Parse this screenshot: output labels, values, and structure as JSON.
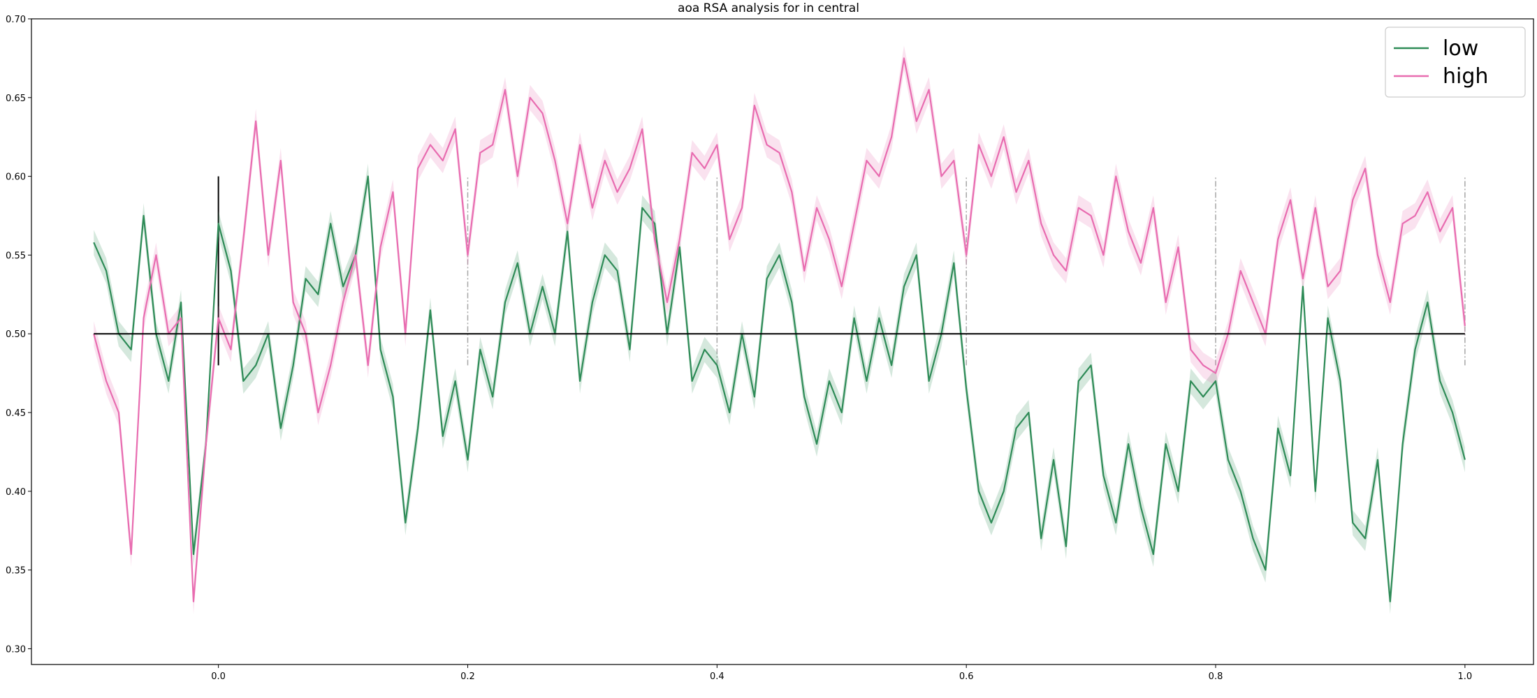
{
  "chart_data": {
    "type": "line",
    "title": "aoa RSA analysis for in central",
    "xlabel": "",
    "ylabel": "",
    "xlim": [
      -0.15,
      1.055
    ],
    "ylim": [
      0.29,
      0.7
    ],
    "x_ticks": [
      0.0,
      0.2,
      0.4,
      0.6,
      0.8,
      1.0
    ],
    "x_tick_labels": [
      "0.0",
      "0.2",
      "0.4",
      "0.6",
      "0.8",
      "1.0"
    ],
    "y_ticks": [
      0.3,
      0.35,
      0.4,
      0.45,
      0.5,
      0.55,
      0.6,
      0.65,
      0.7
    ],
    "y_tick_labels": [
      "0.30",
      "0.35",
      "0.40",
      "0.45",
      "0.50",
      "0.55",
      "0.60",
      "0.65",
      "0.70"
    ],
    "grid": false,
    "legend_position": "top-right",
    "chance_level": {
      "y": 0.5,
      "x_range": [
        -0.1,
        1.0
      ],
      "color": "#000000"
    },
    "onset_marker": {
      "x": 0.0,
      "y_range": [
        0.48,
        0.6
      ],
      "color": "#000000"
    },
    "dashed_markers": {
      "x": [
        0.2,
        0.4,
        0.6,
        0.8,
        1.0
      ],
      "y_range": [
        0.48,
        0.6
      ],
      "color": "#a6a6a6"
    },
    "series": [
      {
        "name": "low",
        "color": "#2e8b57",
        "band_halfwidth": 0.008,
        "x": [
          -0.1,
          -0.09,
          -0.08,
          -0.07,
          -0.06,
          -0.05,
          -0.04,
          -0.03,
          -0.02,
          -0.01,
          0.0,
          0.01,
          0.02,
          0.03,
          0.04,
          0.05,
          0.06,
          0.07,
          0.08,
          0.09,
          0.1,
          0.11,
          0.12,
          0.13,
          0.14,
          0.15,
          0.16,
          0.17,
          0.18,
          0.19,
          0.2,
          0.21,
          0.22,
          0.23,
          0.24,
          0.25,
          0.26,
          0.27,
          0.28,
          0.29,
          0.3,
          0.31,
          0.32,
          0.33,
          0.34,
          0.35,
          0.36,
          0.37,
          0.38,
          0.39,
          0.4,
          0.41,
          0.42,
          0.43,
          0.44,
          0.45,
          0.46,
          0.47,
          0.48,
          0.49,
          0.5,
          0.51,
          0.52,
          0.53,
          0.54,
          0.55,
          0.56,
          0.57,
          0.58,
          0.59,
          0.6,
          0.61,
          0.62,
          0.63,
          0.64,
          0.65,
          0.66,
          0.67,
          0.68,
          0.69,
          0.7,
          0.71,
          0.72,
          0.73,
          0.74,
          0.75,
          0.76,
          0.77,
          0.78,
          0.79,
          0.8,
          0.81,
          0.82,
          0.83,
          0.84,
          0.85,
          0.86,
          0.87,
          0.88,
          0.89,
          0.9,
          0.91,
          0.92,
          0.93,
          0.94,
          0.95,
          0.96,
          0.97,
          0.98,
          0.99,
          1.0
        ],
        "y": [
          0.558,
          0.54,
          0.5,
          0.49,
          0.575,
          0.5,
          0.47,
          0.52,
          0.36,
          0.43,
          0.57,
          0.54,
          0.47,
          0.48,
          0.5,
          0.44,
          0.48,
          0.535,
          0.525,
          0.57,
          0.53,
          0.55,
          0.6,
          0.49,
          0.46,
          0.38,
          0.44,
          0.515,
          0.435,
          0.47,
          0.42,
          0.49,
          0.46,
          0.52,
          0.545,
          0.5,
          0.53,
          0.5,
          0.565,
          0.47,
          0.52,
          0.55,
          0.54,
          0.49,
          0.58,
          0.57,
          0.5,
          0.555,
          0.47,
          0.49,
          0.48,
          0.45,
          0.5,
          0.46,
          0.535,
          0.55,
          0.52,
          0.46,
          0.43,
          0.47,
          0.45,
          0.51,
          0.47,
          0.51,
          0.48,
          0.53,
          0.55,
          0.47,
          0.5,
          0.545,
          0.465,
          0.4,
          0.38,
          0.4,
          0.44,
          0.45,
          0.37,
          0.42,
          0.365,
          0.47,
          0.48,
          0.41,
          0.38,
          0.43,
          0.39,
          0.36,
          0.43,
          0.4,
          0.47,
          0.46,
          0.47,
          0.42,
          0.4,
          0.37,
          0.35,
          0.44,
          0.41,
          0.53,
          0.4,
          0.51,
          0.47,
          0.38,
          0.37,
          0.42,
          0.33,
          0.43,
          0.49,
          0.52,
          0.47,
          0.45,
          0.42
        ]
      },
      {
        "name": "high",
        "color": "#e86cb0",
        "band_halfwidth": 0.008,
        "x": [
          -0.1,
          -0.09,
          -0.08,
          -0.07,
          -0.06,
          -0.05,
          -0.04,
          -0.03,
          -0.02,
          -0.01,
          0.0,
          0.01,
          0.02,
          0.03,
          0.04,
          0.05,
          0.06,
          0.07,
          0.08,
          0.09,
          0.1,
          0.11,
          0.12,
          0.13,
          0.14,
          0.15,
          0.16,
          0.17,
          0.18,
          0.19,
          0.2,
          0.21,
          0.22,
          0.23,
          0.24,
          0.25,
          0.26,
          0.27,
          0.28,
          0.29,
          0.3,
          0.31,
          0.32,
          0.33,
          0.34,
          0.35,
          0.36,
          0.37,
          0.38,
          0.39,
          0.4,
          0.41,
          0.42,
          0.43,
          0.44,
          0.45,
          0.46,
          0.47,
          0.48,
          0.49,
          0.5,
          0.51,
          0.52,
          0.53,
          0.54,
          0.55,
          0.56,
          0.57,
          0.58,
          0.59,
          0.6,
          0.61,
          0.62,
          0.63,
          0.64,
          0.65,
          0.66,
          0.67,
          0.68,
          0.69,
          0.7,
          0.71,
          0.72,
          0.73,
          0.74,
          0.75,
          0.76,
          0.77,
          0.78,
          0.79,
          0.8,
          0.81,
          0.82,
          0.83,
          0.84,
          0.85,
          0.86,
          0.87,
          0.88,
          0.89,
          0.9,
          0.91,
          0.92,
          0.93,
          0.94,
          0.95,
          0.96,
          0.97,
          0.98,
          0.99,
          1.0
        ],
        "y": [
          0.5,
          0.47,
          0.45,
          0.36,
          0.51,
          0.55,
          0.5,
          0.51,
          0.33,
          0.43,
          0.51,
          0.49,
          0.56,
          0.635,
          0.55,
          0.61,
          0.52,
          0.5,
          0.45,
          0.48,
          0.52,
          0.55,
          0.48,
          0.555,
          0.59,
          0.5,
          0.605,
          0.62,
          0.61,
          0.63,
          0.55,
          0.615,
          0.62,
          0.655,
          0.6,
          0.65,
          0.64,
          0.61,
          0.57,
          0.62,
          0.58,
          0.61,
          0.59,
          0.605,
          0.63,
          0.56,
          0.52,
          0.56,
          0.615,
          0.605,
          0.62,
          0.56,
          0.58,
          0.645,
          0.62,
          0.615,
          0.59,
          0.54,
          0.58,
          0.56,
          0.53,
          0.57,
          0.61,
          0.6,
          0.625,
          0.675,
          0.635,
          0.655,
          0.6,
          0.61,
          0.55,
          0.62,
          0.6,
          0.625,
          0.59,
          0.61,
          0.57,
          0.55,
          0.54,
          0.58,
          0.575,
          0.55,
          0.6,
          0.565,
          0.545,
          0.58,
          0.52,
          0.555,
          0.49,
          0.48,
          0.475,
          0.5,
          0.54,
          0.52,
          0.5,
          0.56,
          0.585,
          0.535,
          0.58,
          0.53,
          0.54,
          0.585,
          0.605,
          0.55,
          0.52,
          0.57,
          0.575,
          0.59,
          0.565,
          0.58,
          0.505
        ]
      }
    ]
  }
}
